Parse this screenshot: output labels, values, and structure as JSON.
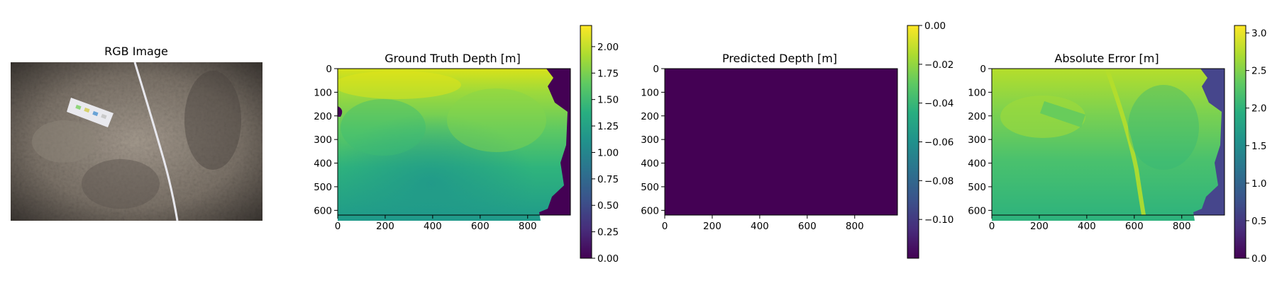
{
  "chart_data": [
    {
      "type": "image",
      "title": "RGB Image",
      "axes_visible": false,
      "content": "underwater sandy seabed photo with a measuring tape and a small color-checker card"
    },
    {
      "type": "heatmap",
      "title": "Ground Truth Depth [m]",
      "colormap": "viridis",
      "xlim": [
        0,
        980
      ],
      "ylim": [
        620,
        0
      ],
      "xticks": [
        0,
        200,
        400,
        600,
        800
      ],
      "yticks": [
        0,
        100,
        200,
        300,
        400,
        500,
        600
      ],
      "colorbar": {
        "min": 0.0,
        "max": 2.2,
        "ticks": [
          "0.00",
          "0.25",
          "0.50",
          "0.75",
          "1.00",
          "1.25",
          "1.50",
          "1.75",
          "2.00"
        ]
      }
    },
    {
      "type": "heatmap",
      "title": "Predicted Depth [m]",
      "colormap": "viridis",
      "xlim": [
        0,
        980
      ],
      "ylim": [
        620,
        0
      ],
      "xticks": [
        0,
        200,
        400,
        600,
        800
      ],
      "yticks": [
        0,
        100,
        200,
        300,
        400,
        500,
        600
      ],
      "colorbar": {
        "min": -0.12,
        "max": 0.0,
        "ticks": [
          "−0.10",
          "−0.08",
          "−0.06",
          "−0.04",
          "−0.02",
          "0.00"
        ]
      }
    },
    {
      "type": "heatmap",
      "title": "Absolute Error [m]",
      "colormap": "viridis",
      "xlim": [
        0,
        980
      ],
      "ylim": [
        620,
        0
      ],
      "xticks": [
        0,
        200,
        400,
        600,
        800
      ],
      "yticks": [
        0,
        100,
        200,
        300,
        400,
        500,
        600
      ],
      "colorbar": {
        "min": 0.0,
        "max": 3.1,
        "ticks": [
          "0.0",
          "0.5",
          "1.0",
          "1.5",
          "2.0",
          "2.5",
          "3.0"
        ]
      }
    }
  ]
}
